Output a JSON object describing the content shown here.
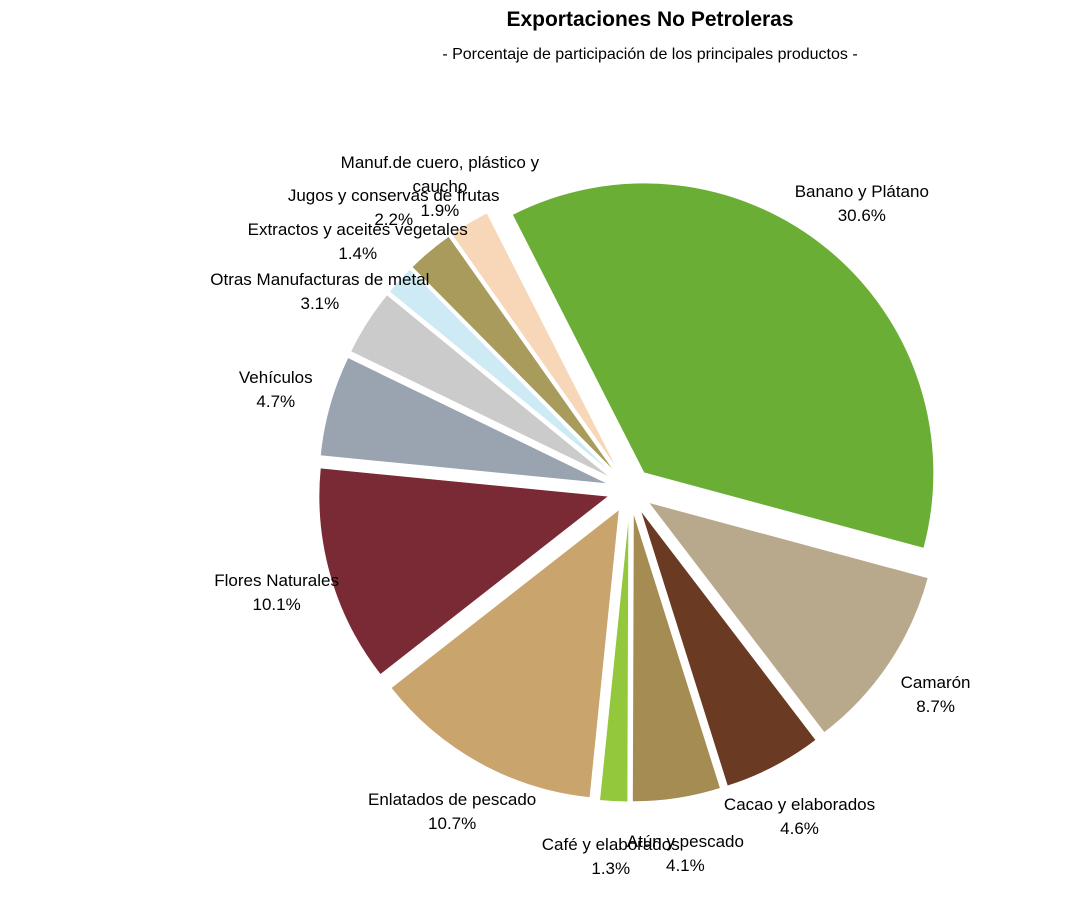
{
  "chart_data": {
    "type": "pie",
    "title": "Exportaciones No Petroleras",
    "subtitle": "- Porcentaje de participación de los principales productos -",
    "categories": [
      "Banano y Plátano",
      "Camarón",
      "Cacao y elaborados",
      "Atún y pescado",
      "Café y elaborados",
      "Enlatados de pescado",
      "Flores Naturales",
      "Vehículos",
      "Otras Manufacturas de metal",
      "Extractos y aceites vegetales",
      "Jugos y conservas de frutas",
      "Manuf.de cuero, plástico y caucho"
    ],
    "values": [
      30.6,
      8.7,
      4.6,
      4.1,
      1.3,
      10.7,
      10.1,
      4.7,
      3.1,
      1.4,
      2.2,
      1.9
    ],
    "value_labels": [
      "30.6%",
      "8.7%",
      "4.6%",
      "4.1%",
      "1.3%",
      "10.7%",
      "10.1%",
      "4.7%",
      "3.1%",
      "1.4%",
      "2.2%",
      "1.9%"
    ],
    "colors": [
      "#6aae35",
      "#b8a88c",
      "#6b3a22",
      "#a58c52",
      "#93c83c",
      "#c9a46c",
      "#7a2a34",
      "#9aa3b0",
      "#cbcbcb",
      "#cdeaf5",
      "#a89b5c",
      "#f8d6b8"
    ]
  }
}
